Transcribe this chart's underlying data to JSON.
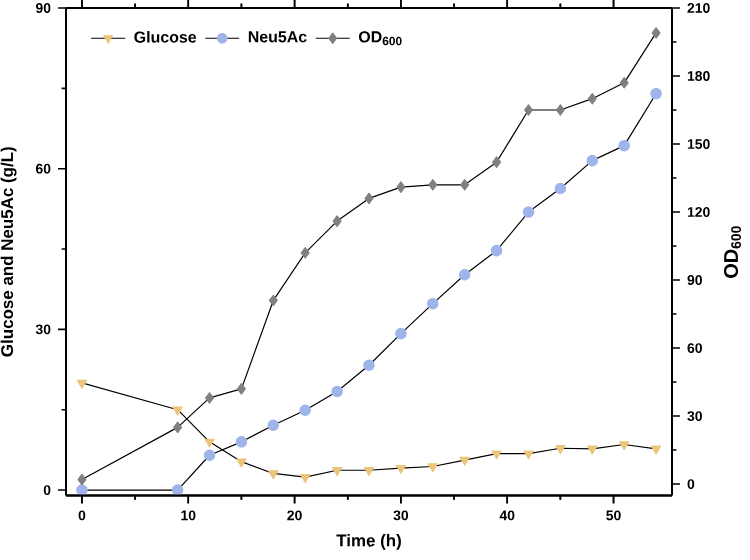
{
  "chart_data": {
    "type": "line",
    "xlabel": "Time (h)",
    "ylabel": "Glucose and Neu5Ac (g/L)",
    "y2label": "OD$_{600}$",
    "x": [
      0,
      9,
      12,
      15,
      18,
      21,
      24,
      27,
      30,
      33,
      36,
      39,
      42,
      45,
      48,
      51,
      54
    ],
    "series": [
      {
        "name": "Glucose",
        "color": "#eac57a",
        "marker": "triangle",
        "values": [
          20,
          15,
          9,
          5.3,
          3.1,
          2.4,
          3.7,
          3.7,
          4.1,
          4.4,
          5.6,
          6.8,
          6.8,
          7.8,
          7.7,
          8.5,
          7.7
        ]
      },
      {
        "name": "Neu5Ac",
        "color": "#9fb5ea",
        "marker": "circle",
        "values": [
          0,
          0,
          6.5,
          9,
          12.1,
          14.9,
          18.4,
          23.3,
          29.2,
          34.8,
          40.2,
          44.7,
          51.9,
          56.3,
          61.5,
          64.3,
          74
        ]
      },
      {
        "name": "OD$_{600}$",
        "color": "#808080",
        "marker": "diamond",
        "axis": "y2",
        "values": [
          2,
          25,
          38,
          42,
          81,
          102,
          116,
          126,
          131,
          132,
          132,
          142,
          165,
          165,
          170,
          177,
          199
        ]
      }
    ],
    "xlim": [
      -1.5,
      55.5
    ],
    "xticks": [
      0,
      10,
      20,
      30,
      40,
      50
    ],
    "ylim": [
      -1,
      90
    ],
    "yticks": [
      0,
      30,
      60,
      90
    ],
    "y2lim": [
      -5,
      210
    ],
    "y2ticks": [
      0,
      30,
      60,
      90,
      120,
      150,
      180,
      210
    ],
    "legend": "top left",
    "line_style": "solid"
  }
}
